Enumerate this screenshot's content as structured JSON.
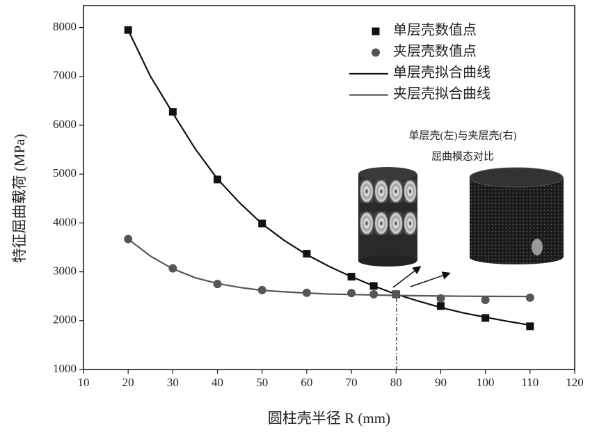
{
  "chart_data": {
    "type": "scatter-line",
    "xlabel": "圆柱壳半径 R (mm)",
    "ylabel": "特征屈曲载荷 (MPa)",
    "annotations": [
      "单层壳(左)与夹层壳(右)",
      "屈曲模态对比"
    ],
    "xlim": [
      10,
      120
    ],
    "xticks": [
      10,
      20,
      30,
      40,
      50,
      60,
      70,
      80,
      90,
      100,
      110,
      120
    ],
    "ylim": [
      1000,
      8450
    ],
    "yticks": [
      1000,
      2000,
      3000,
      4000,
      5000,
      6000,
      7000,
      8000
    ],
    "series": [
      {
        "name": "单层壳数值点",
        "kind": "square",
        "color": "#111111",
        "x": [
          20,
          30,
          40,
          50,
          60,
          70,
          75,
          80,
          90,
          100,
          110
        ],
        "values": [
          7950,
          6275,
          4890,
          3990,
          3370,
          2900,
          2710,
          2540,
          2300,
          2055,
          1885
        ]
      },
      {
        "name": "夹层壳数值点",
        "kind": "circle",
        "color": "#555555",
        "x": [
          20,
          30,
          40,
          50,
          60,
          70,
          75,
          80,
          90,
          100,
          110
        ],
        "values": [
          3670,
          3070,
          2750,
          2625,
          2570,
          2565,
          2540,
          2540,
          2455,
          2425,
          2470
        ]
      },
      {
        "name": "单层壳拟合曲线",
        "kind": "line",
        "color": "#111111",
        "x": [
          20,
          25,
          30,
          35,
          40,
          45,
          50,
          55,
          60,
          65,
          70,
          75,
          80,
          85,
          90,
          95,
          100,
          105,
          110
        ],
        "values": [
          7950,
          7000,
          6250,
          5520,
          4900,
          4410,
          3980,
          3640,
          3350,
          3110,
          2900,
          2710,
          2540,
          2400,
          2270,
          2160,
          2070,
          1985,
          1910
        ]
      },
      {
        "name": "夹层壳拟合曲线",
        "kind": "line",
        "color": "#555555",
        "x": [
          20,
          25,
          30,
          35,
          40,
          45,
          50,
          55,
          60,
          65,
          70,
          75,
          80,
          85,
          90,
          95,
          100,
          105,
          110
        ],
        "values": [
          3670,
          3320,
          3060,
          2880,
          2760,
          2680,
          2620,
          2590,
          2565,
          2545,
          2535,
          2525,
          2515,
          2510,
          2505,
          2500,
          2498,
          2496,
          2495
        ]
      }
    ]
  }
}
